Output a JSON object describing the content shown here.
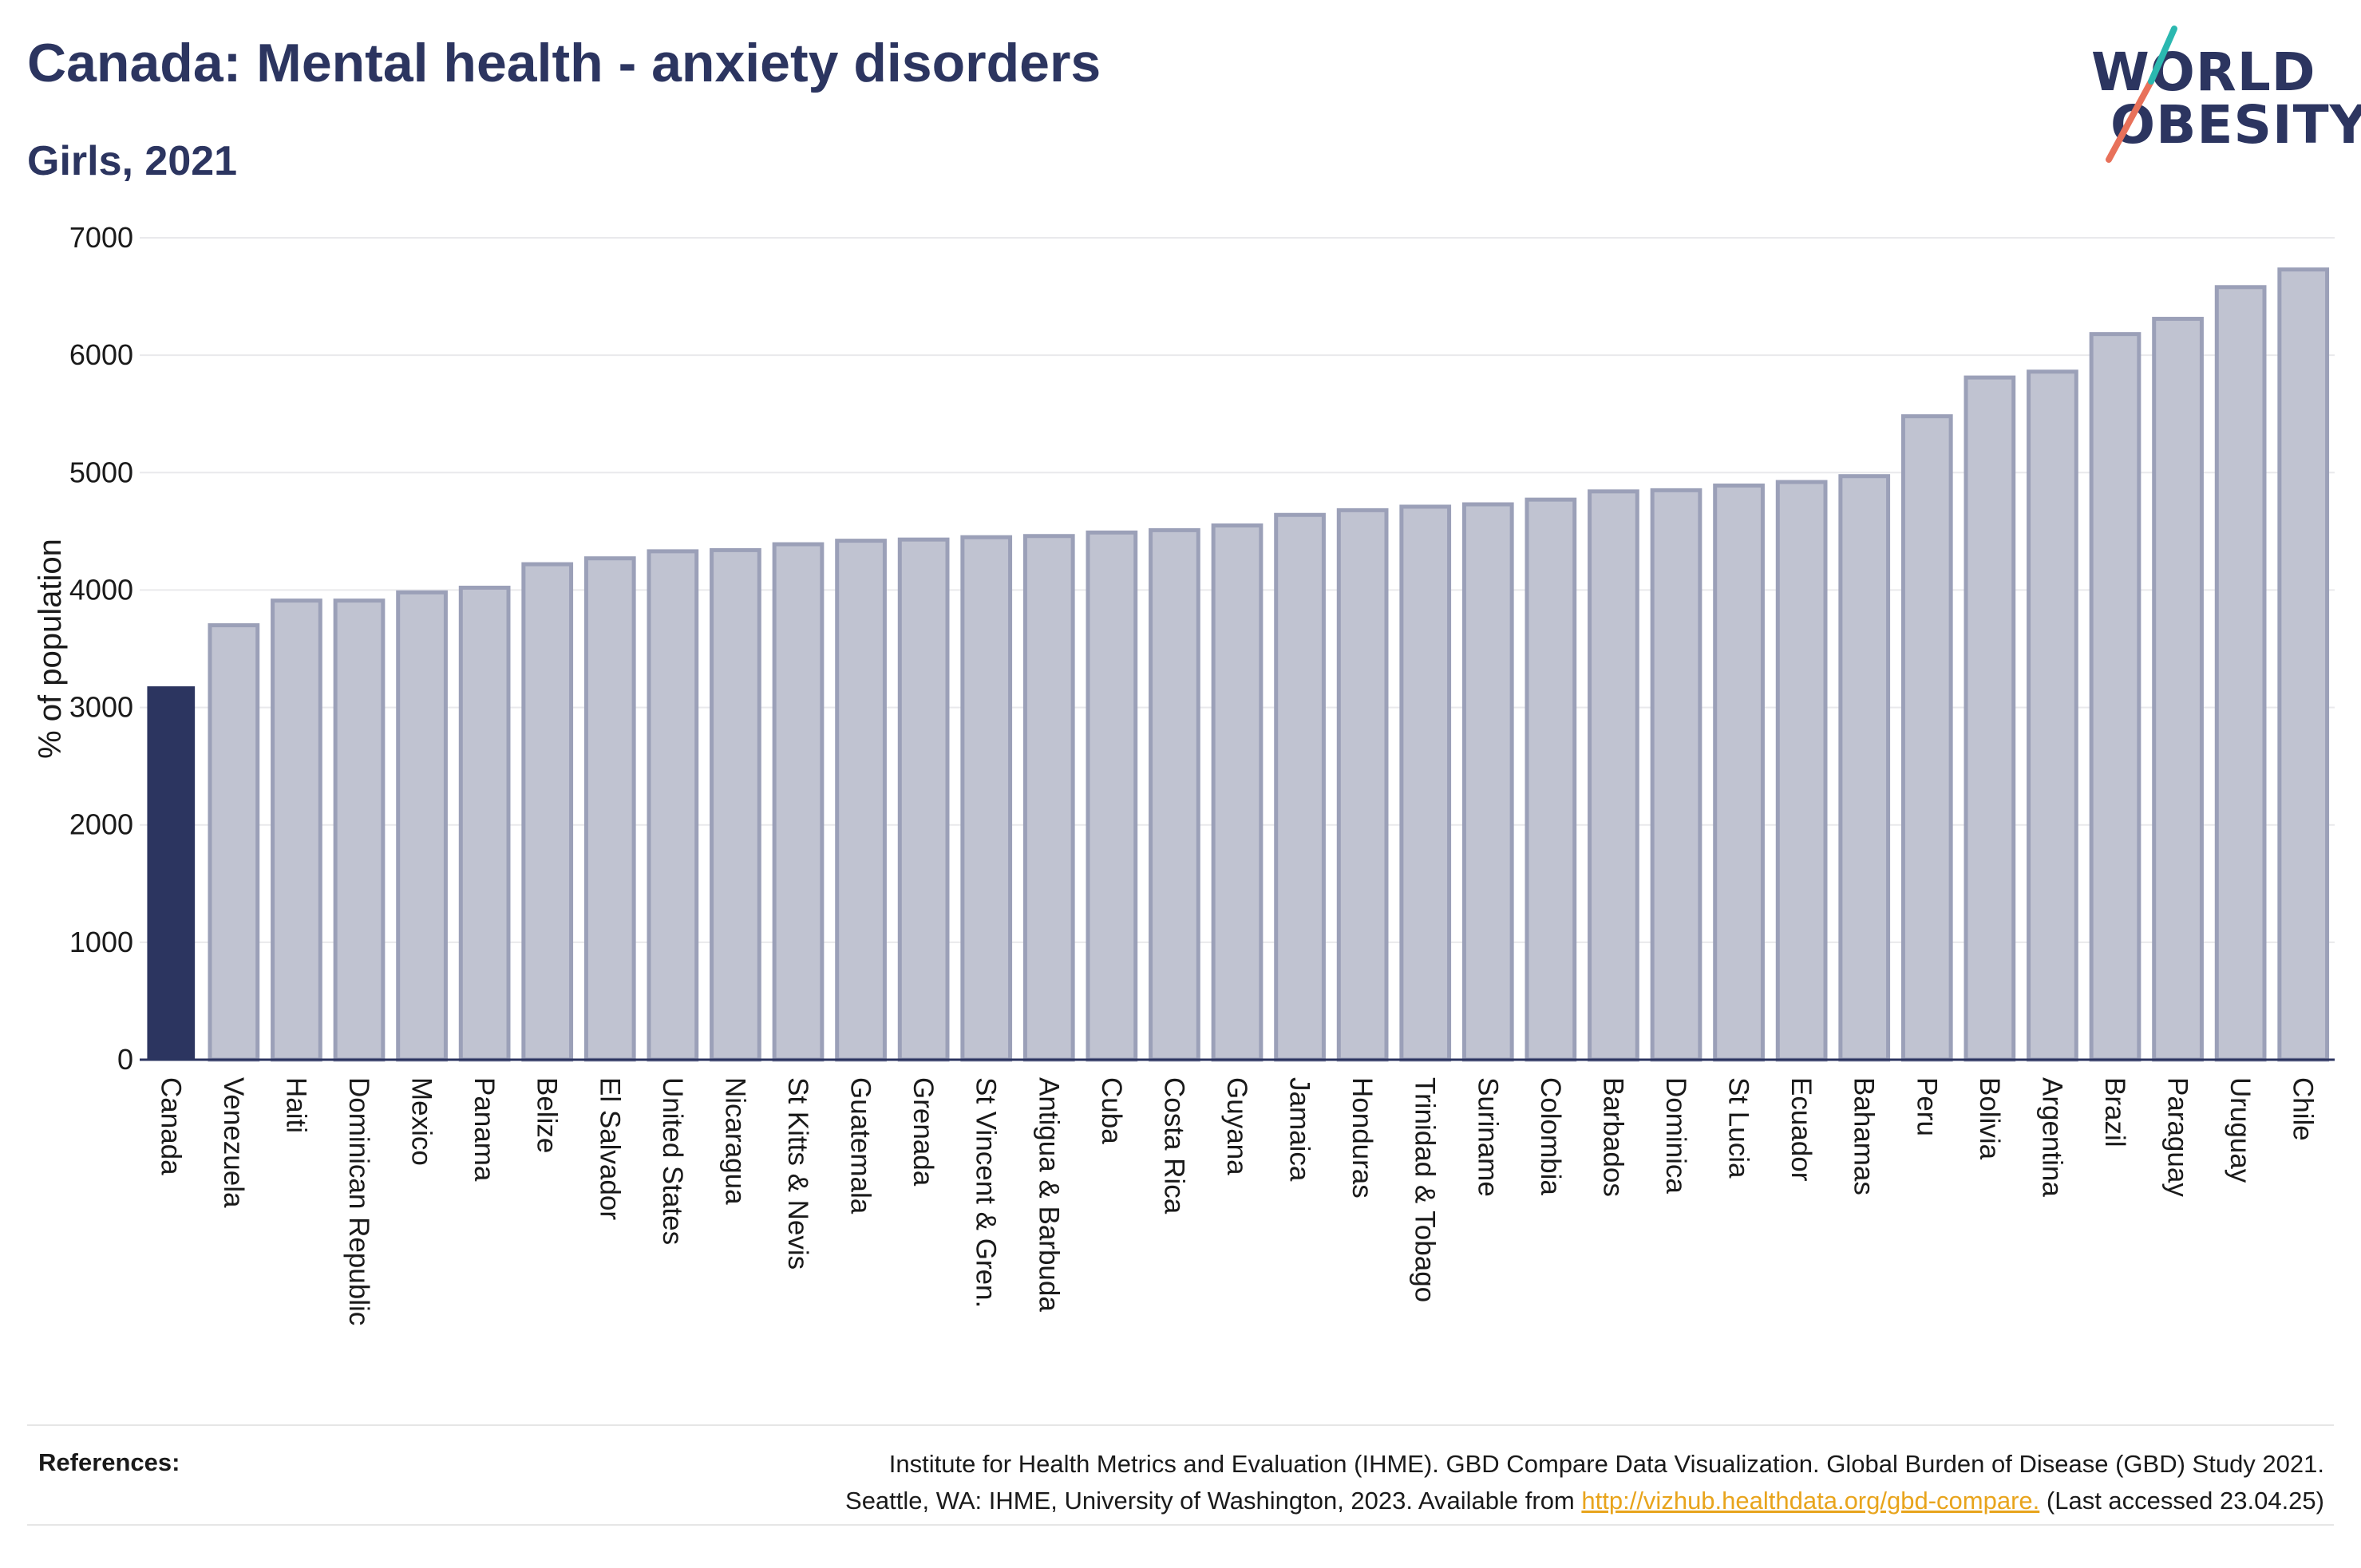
{
  "header": {
    "title": "Canada: Mental health - anxiety disorders",
    "subtitle": "Girls, 2021"
  },
  "logo": {
    "line1": "WORLD",
    "line2": "OBESITY",
    "accent_teal": "#2bb8b0",
    "accent_coral": "#e8715a"
  },
  "colors": {
    "highlight_bar": "#2c3560",
    "other_bar_fill": "#c0c3d1",
    "other_bar_stroke": "#9ba0b8",
    "text": "#2c3560",
    "link": "#e8a41c"
  },
  "chart_data": {
    "type": "bar",
    "ylabel": "% of population",
    "ylim": [
      0,
      7000
    ],
    "yticks": [
      0,
      1000,
      2000,
      3000,
      4000,
      5000,
      6000,
      7000
    ],
    "grid": true,
    "highlight": "Canada",
    "categories": [
      "Canada",
      "Venezuela",
      "Haiti",
      "Dominican Republic",
      "Mexico",
      "Panama",
      "Belize",
      "El Salvador",
      "United States",
      "Nicaragua",
      "St Kitts & Nevis",
      "Guatemala",
      "Grenada",
      "St Vincent & Gren.",
      "Antigua & Barbuda",
      "Cuba",
      "Costa Rica",
      "Guyana",
      "Jamaica",
      "Honduras",
      "Trinidad & Tobago",
      "Suriname",
      "Colombia",
      "Barbados",
      "Dominica",
      "St Lucia",
      "Ecuador",
      "Bahamas",
      "Peru",
      "Bolivia",
      "Argentina",
      "Brazil",
      "Paraguay",
      "Uruguay",
      "Chile"
    ],
    "values": [
      3180,
      3700,
      3910,
      3910,
      3980,
      4020,
      4220,
      4270,
      4330,
      4340,
      4390,
      4420,
      4430,
      4450,
      4460,
      4490,
      4510,
      4550,
      4640,
      4680,
      4710,
      4730,
      4770,
      4840,
      4850,
      4890,
      4920,
      4970,
      5480,
      5810,
      5860,
      6180,
      6310,
      6580,
      6730
    ]
  },
  "references": {
    "label": "References:",
    "line1": "Institute for Health Metrics and Evaluation (IHME). GBD Compare Data Visualization. Global Burden of Disease (GBD) Study 2021.",
    "line2_prefix": "Seattle, WA: IHME, University of Washington, 2023. Available from",
    "link": "http://vizhub.healthdata.org/gbd-compare.",
    "line2_suffix": "(Last accessed 23.04.25)"
  }
}
